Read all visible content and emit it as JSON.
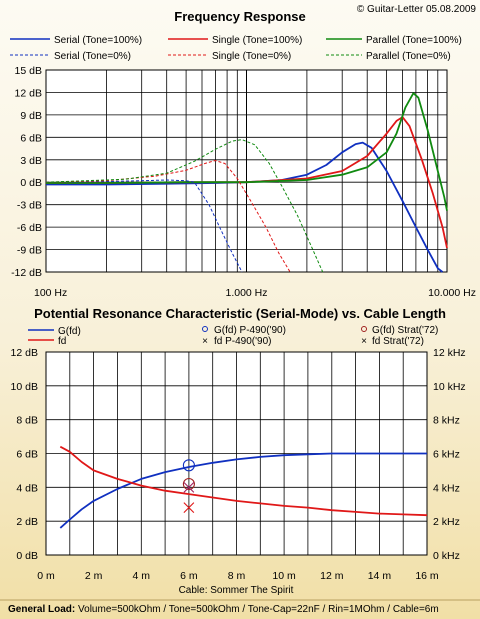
{
  "copyright": "© Guitar-Letter 05.08.2009",
  "footer": {
    "label": "General Load:",
    "text": "Volume=500kOhm / Tone=500kOhm / Tone-Cap=22nF / Rin=1MOhm / Cable=6m"
  },
  "colors": {
    "serial": "#1030c0",
    "single": "#e01818",
    "parallel": "#108a10",
    "grid": "#000000",
    "plot_bg": "#ffffff"
  },
  "chart_data": [
    {
      "type": "line",
      "title": "Frequency Response",
      "xlabel": "",
      "ylabel": "",
      "xscale": "log",
      "xlim": [
        100,
        10000
      ],
      "ylim": [
        -12,
        15
      ],
      "grid": true,
      "legend_position": "top",
      "x_ticks": [
        {
          "v": 100,
          "label": "100 Hz"
        },
        {
          "v": 1000,
          "label": "1.000 Hz"
        },
        {
          "v": 10000,
          "label": "10.000 Hz"
        }
      ],
      "y_ticks": [
        {
          "v": 15,
          "label": "15 dB"
        },
        {
          "v": 12,
          "label": "12 dB"
        },
        {
          "v": 9,
          "label": "9 dB"
        },
        {
          "v": 6,
          "label": "6 dB"
        },
        {
          "v": 3,
          "label": "3 dB"
        },
        {
          "v": 0,
          "label": "0 dB"
        },
        {
          "v": -3,
          "label": "-3 dB"
        },
        {
          "v": -6,
          "label": "-6 dB"
        },
        {
          "v": -9,
          "label": "-9 dB"
        },
        {
          "v": -12,
          "label": "-12 dB"
        }
      ],
      "series": [
        {
          "name": "Serial (Tone=100%)",
          "color": "#1030c0",
          "dash": false,
          "points": [
            [
              100,
              -0.3
            ],
            [
              200,
              -0.3
            ],
            [
              400,
              -0.2
            ],
            [
              700,
              -0.1
            ],
            [
              1000,
              0
            ],
            [
              1500,
              0.3
            ],
            [
              2000,
              1
            ],
            [
              2500,
              2.3
            ],
            [
              3000,
              4
            ],
            [
              3500,
              5.1
            ],
            [
              3800,
              5.3
            ],
            [
              4200,
              4.6
            ],
            [
              5000,
              1.5
            ],
            [
              6000,
              -2.5
            ],
            [
              7000,
              -6
            ],
            [
              8000,
              -9
            ],
            [
              9000,
              -11.5
            ],
            [
              9500,
              -12
            ]
          ]
        },
        {
          "name": "Single (Tone=100%)",
          "color": "#e01818",
          "dash": false,
          "points": [
            [
              100,
              -0.1
            ],
            [
              200,
              -0.1
            ],
            [
              500,
              0
            ],
            [
              1000,
              0
            ],
            [
              2000,
              0.5
            ],
            [
              3000,
              1.5
            ],
            [
              4000,
              3.5
            ],
            [
              5000,
              6.5
            ],
            [
              5600,
              8.2
            ],
            [
              6000,
              8.7
            ],
            [
              6500,
              7.5
            ],
            [
              7500,
              3
            ],
            [
              8500,
              -1.5
            ],
            [
              9500,
              -6
            ],
            [
              10000,
              -8.8
            ]
          ]
        },
        {
          "name": "Parallel (Tone=100%)",
          "color": "#108a10",
          "dash": false,
          "points": [
            [
              100,
              -0.1
            ],
            [
              200,
              -0.1
            ],
            [
              500,
              0
            ],
            [
              1000,
              0
            ],
            [
              2000,
              0.3
            ],
            [
              3000,
              1
            ],
            [
              4000,
              2
            ],
            [
              5000,
              4
            ],
            [
              5600,
              6.5
            ],
            [
              6200,
              10
            ],
            [
              6800,
              11.9
            ],
            [
              7200,
              11.3
            ],
            [
              8000,
              7
            ],
            [
              9000,
              1.5
            ],
            [
              9700,
              -2
            ],
            [
              10000,
              -3.8
            ]
          ]
        },
        {
          "name": "Serial (Tone=0%)",
          "color": "#1030c0",
          "dash": true,
          "points": [
            [
              100,
              0
            ],
            [
              200,
              0.1
            ],
            [
              300,
              0.2
            ],
            [
              400,
              0.3
            ],
            [
              500,
              0.2
            ],
            [
              550,
              0
            ],
            [
              650,
              -3
            ],
            [
              750,
              -6.5
            ],
            [
              850,
              -9.5
            ],
            [
              950,
              -12
            ]
          ]
        },
        {
          "name": "Single (Tone=0%)",
          "color": "#e01818",
          "dash": true,
          "points": [
            [
              100,
              0
            ],
            [
              200,
              0.2
            ],
            [
              350,
              0.8
            ],
            [
              500,
              1.6
            ],
            [
              620,
              2.5
            ],
            [
              700,
              2.9
            ],
            [
              780,
              2.5
            ],
            [
              900,
              0.5
            ],
            [
              1050,
              -2.5
            ],
            [
              1250,
              -6
            ],
            [
              1450,
              -9.5
            ],
            [
              1650,
              -12
            ]
          ]
        },
        {
          "name": "Parallel (Tone=0%)",
          "color": "#108a10",
          "dash": true,
          "points": [
            [
              100,
              0
            ],
            [
              250,
              0.4
            ],
            [
              400,
              1.2
            ],
            [
              550,
              2.8
            ],
            [
              700,
              4.4
            ],
            [
              850,
              5.5
            ],
            [
              950,
              5.7
            ],
            [
              1100,
              5
            ],
            [
              1300,
              2.5
            ],
            [
              1500,
              -0.5
            ],
            [
              1800,
              -4.5
            ],
            [
              2100,
              -8.5
            ],
            [
              2400,
              -12
            ]
          ]
        }
      ]
    },
    {
      "type": "line",
      "title": "Potential Resonance Characteristic (Serial-Mode) vs. Cable Length",
      "xlabel": "Cable: Sommer The Spirit",
      "ylabel": "",
      "y2label": "",
      "xlim": [
        0,
        16
      ],
      "ylim": [
        0,
        12
      ],
      "y2lim": [
        0,
        12
      ],
      "grid": true,
      "legend_position": "top",
      "x_ticks": [
        {
          "v": 0,
          "label": "0 m"
        },
        {
          "v": 2,
          "label": "2 m"
        },
        {
          "v": 4,
          "label": "4 m"
        },
        {
          "v": 6,
          "label": "6 m"
        },
        {
          "v": 8,
          "label": "8 m"
        },
        {
          "v": 10,
          "label": "10 m"
        },
        {
          "v": 12,
          "label": "12 m"
        },
        {
          "v": 14,
          "label": "14 m"
        },
        {
          "v": 16,
          "label": "16 m"
        }
      ],
      "y_ticks": [
        {
          "v": 12,
          "label": "12 dB"
        },
        {
          "v": 10,
          "label": "10 dB"
        },
        {
          "v": 8,
          "label": "8 dB"
        },
        {
          "v": 6,
          "label": "6 dB"
        },
        {
          "v": 4,
          "label": "4 dB"
        },
        {
          "v": 2,
          "label": "2 dB"
        },
        {
          "v": 0,
          "label": "0 dB"
        }
      ],
      "y2_ticks": [
        {
          "v": 12,
          "label": "12 kHz"
        },
        {
          "v": 10,
          "label": "10 kHz"
        },
        {
          "v": 8,
          "label": "8 kHz"
        },
        {
          "v": 6,
          "label": "6 kHz"
        },
        {
          "v": 4,
          "label": "4 kHz"
        },
        {
          "v": 2,
          "label": "2 kHz"
        },
        {
          "v": 0,
          "label": "0 kHz"
        }
      ],
      "series": [
        {
          "name": "G(fd)",
          "color": "#1030c0",
          "axis": "left",
          "points": [
            [
              0.6,
              1.6
            ],
            [
              1,
              2.1
            ],
            [
              1.5,
              2.7
            ],
            [
              2,
              3.2
            ],
            [
              3,
              3.9
            ],
            [
              4,
              4.5
            ],
            [
              5,
              4.9
            ],
            [
              6,
              5.2
            ],
            [
              7,
              5.45
            ],
            [
              8,
              5.65
            ],
            [
              9,
              5.8
            ],
            [
              10,
              5.9
            ],
            [
              11,
              5.95
            ],
            [
              12,
              6
            ],
            [
              13,
              6
            ],
            [
              14,
              6
            ],
            [
              15,
              6
            ],
            [
              16,
              6
            ]
          ]
        },
        {
          "name": "fd",
          "color": "#e01818",
          "axis": "right",
          "points": [
            [
              0.6,
              6.4
            ],
            [
              1,
              6.1
            ],
            [
              1.5,
              5.5
            ],
            [
              2,
              5.0
            ],
            [
              3,
              4.5
            ],
            [
              4,
              4.1
            ],
            [
              5,
              3.8
            ],
            [
              6,
              3.6
            ],
            [
              7,
              3.4
            ],
            [
              8,
              3.2
            ],
            [
              9,
              3.05
            ],
            [
              10,
              2.9
            ],
            [
              11,
              2.8
            ],
            [
              12,
              2.65
            ],
            [
              13,
              2.55
            ],
            [
              14,
              2.45
            ],
            [
              15,
              2.4
            ],
            [
              16,
              2.35
            ]
          ]
        }
      ],
      "markers": [
        {
          "name": "G(fd) P-490('90)",
          "color": "#1030c0",
          "shape": "circle",
          "axis": "left",
          "x": 6,
          "y": 5.3
        },
        {
          "name": "fd P-490('90)",
          "color": "#e01818",
          "shape": "x",
          "axis": "right",
          "x": 6,
          "y": 2.8
        },
        {
          "name": "G(fd) Strat('72)",
          "color": "#a02020",
          "shape": "circle",
          "axis": "left",
          "x": 6,
          "y": 4.2
        },
        {
          "name": "fd Strat('72)",
          "color": "#a02060",
          "shape": "x",
          "axis": "right",
          "x": 6,
          "y": 4.0
        }
      ]
    }
  ]
}
